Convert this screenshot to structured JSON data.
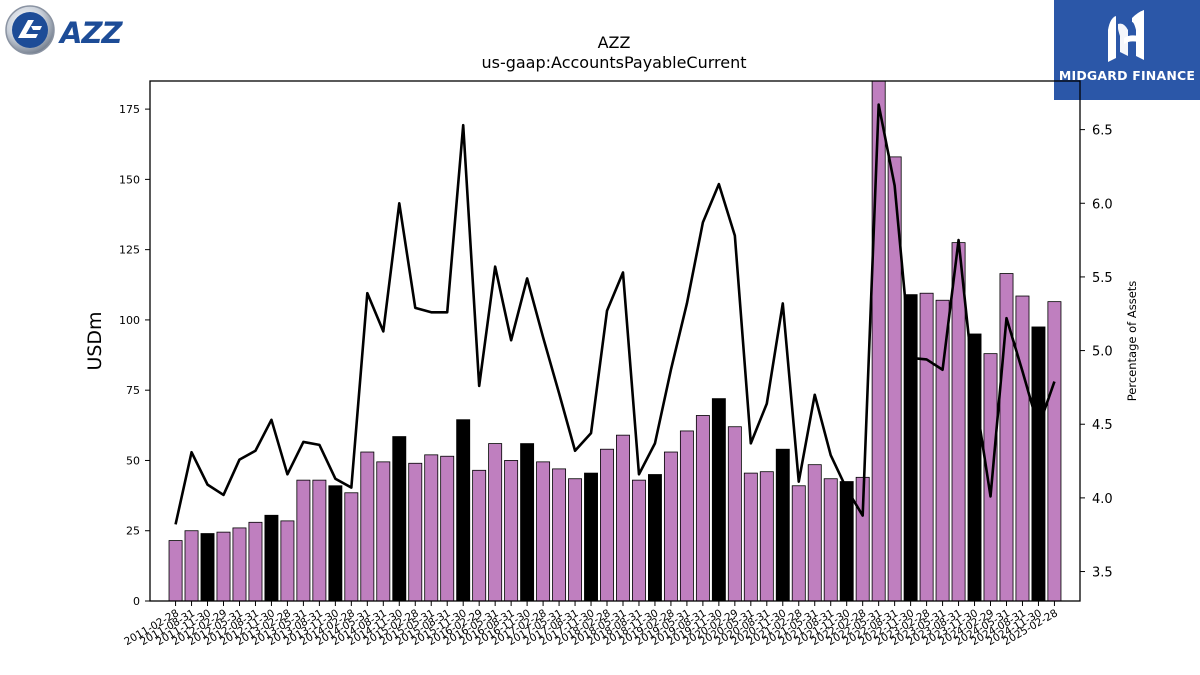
{
  "branding": {
    "left_logo_text": "AZZ",
    "right_logo_text": "MIDGARD FINANCE"
  },
  "colors": {
    "bar_normal": "#bf7fbf",
    "bar_highlight": "#000000",
    "line": "#000000",
    "logo_blue": "#1d4c97",
    "logo_right_bg": "#2b57a8"
  },
  "chart_data": {
    "type": "bar",
    "title": "AZZ",
    "subtitle": "us-gaap:AccountsPayableCurrent",
    "ylabel": "USDm",
    "y2label": "Percentage of Assets",
    "ylim": [
      0,
      185
    ],
    "y2lim": [
      3.3,
      6.83
    ],
    "yticks": [
      0,
      25,
      50,
      75,
      100,
      125,
      150,
      175
    ],
    "y2ticks": [
      3.5,
      4.0,
      4.5,
      5.0,
      5.5,
      6.0,
      6.5
    ],
    "categories": [
      "2011-02-28",
      "2011-08-31",
      "2011-11-30",
      "2012-02-29",
      "2012-05-31",
      "2012-08-31",
      "2012-11-30",
      "2013-02-28",
      "2013-05-31",
      "2013-08-31",
      "2013-11-30",
      "2014-02-28",
      "2014-05-31",
      "2014-08-31",
      "2014-11-30",
      "2015-02-28",
      "2015-05-31",
      "2015-08-31",
      "2015-11-30",
      "2016-02-29",
      "2016-05-31",
      "2016-08-31",
      "2016-11-30",
      "2017-02-28",
      "2017-05-31",
      "2017-08-31",
      "2017-11-30",
      "2018-02-28",
      "2018-05-31",
      "2018-08-31",
      "2018-11-30",
      "2019-02-28",
      "2019-05-31",
      "2019-08-31",
      "2019-11-30",
      "2020-02-29",
      "2020-05-31",
      "2020-08-31",
      "2020-11-30",
      "2021-02-28",
      "2021-05-31",
      "2021-08-31",
      "2021-11-30",
      "2022-02-28",
      "2022-05-31",
      "2022-08-31",
      "2022-11-30",
      "2023-02-28",
      "2023-05-31",
      "2023-08-31",
      "2023-11-30",
      "2024-02-29",
      "2024-05-31",
      "2024-08-31",
      "2024-11-30",
      "2025-02-28"
    ],
    "xtick_labels": [
      "2011-02-28",
      "2011-08-31",
      "2011-11-30",
      "2012-02-29",
      "2012-05-31",
      "2012-08-31",
      "2012-11-30",
      "2013-02-28",
      "2013-05-31",
      "2013-08-31",
      "2013-11-30",
      "2014-02-28",
      "2014-05-31",
      "2014-08-31",
      "2014-11-30",
      "2015-02-28",
      "2015-05-31",
      "2015-08-31",
      "2015-11-30",
      "2016-02-29",
      "2016-05-31",
      "2016-08-31",
      "2016-11-30",
      "2017-02-28",
      "2017-05-31",
      "2017-08-31",
      "2017-11-30",
      "2018-02-28",
      "2018-05-31",
      "2018-08-31",
      "2018-11-30",
      "2019-02-28",
      "2019-05-31",
      "2019-08-31",
      "2019-11-30",
      "2020-02-29",
      "2020-05-31",
      "2020-08-31",
      "2020-11-30",
      "2021-02-28",
      "2021-05-31",
      "2021-08-31",
      "2021-11-30",
      "2022-02-28",
      "2022-05-31",
      "2022-08-31",
      "2022-11-30",
      "2023-02-28",
      "2023-05-31",
      "2023-08-31",
      "2023-11-30",
      "2024-02-29",
      "2024-05-31",
      "2024-08-31",
      "2024-11-30",
      "2025-02-28"
    ],
    "values": [
      21.5,
      25,
      24,
      24.5,
      26,
      28,
      30.5,
      28.5,
      43,
      43,
      41,
      38.5,
      53,
      49.5,
      58.5,
      49,
      52,
      51.5,
      64.5,
      46.5,
      56,
      50,
      56,
      49.5,
      47,
      43.5,
      45.5,
      54,
      59,
      43,
      45,
      53,
      60.5,
      66,
      72,
      62,
      45.5,
      46,
      54,
      41,
      48.5,
      43.5,
      42.5,
      44,
      186,
      158,
      109,
      109.5,
      107,
      127.5,
      95,
      88,
      116.5,
      108.5,
      97.5,
      106.5
    ],
    "highlight": [
      false,
      false,
      true,
      false,
      false,
      false,
      true,
      false,
      false,
      false,
      true,
      false,
      false,
      false,
      true,
      false,
      false,
      false,
      true,
      false,
      false,
      false,
      true,
      false,
      false,
      false,
      true,
      false,
      false,
      false,
      true,
      false,
      false,
      false,
      true,
      false,
      false,
      false,
      true,
      false,
      false,
      false,
      true,
      false,
      false,
      false,
      true,
      false,
      false,
      false,
      true,
      false,
      false,
      false,
      true,
      false
    ],
    "line_series": {
      "name": "Percentage of Assets",
      "values": [
        3.82,
        4.31,
        4.09,
        4.02,
        4.26,
        4.32,
        4.53,
        4.16,
        4.38,
        4.36,
        4.13,
        4.07,
        5.39,
        5.13,
        6.0,
        5.29,
        5.26,
        5.26,
        6.53,
        4.76,
        5.57,
        5.07,
        5.49,
        5.09,
        4.71,
        4.32,
        4.44,
        5.27,
        5.53,
        4.16,
        4.37,
        4.87,
        5.32,
        5.87,
        6.13,
        5.78,
        4.37,
        4.64,
        5.32,
        4.11,
        4.7,
        4.29,
        4.06,
        3.88,
        6.67,
        6.12,
        4.95,
        4.94,
        4.87,
        5.75,
        4.72,
        4.01,
        5.22,
        4.86,
        4.48,
        4.79
      ]
    },
    "grid": false,
    "legend": "none"
  }
}
